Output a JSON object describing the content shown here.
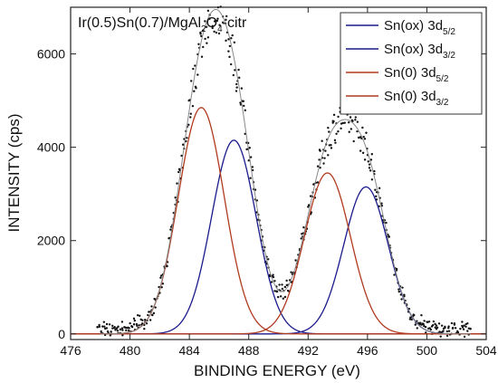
{
  "chart_data": {
    "type": "line",
    "title_parts": [
      {
        "text": "Ir(0.5)Sn(0.7)/MgAl",
        "sub": false
      },
      {
        "text": "2",
        "sub": true
      },
      {
        "text": "O",
        "sub": false
      },
      {
        "text": "4",
        "sub": true
      },
      {
        "text": "-citr",
        "sub": false
      }
    ],
    "xlabel": "BINDING ENERGY (eV)",
    "ylabel": "INTENSITY (cps)",
    "xlim": [
      476,
      504
    ],
    "ylim": [
      -120,
      7000
    ],
    "xticks": [
      476,
      480,
      484,
      488,
      492,
      496,
      500,
      504
    ],
    "yticks": [
      0,
      2000,
      4000,
      6000
    ],
    "grid": false,
    "legend_position": "top-right",
    "series": [
      {
        "name_main": "Sn(ox) 3d",
        "name_sub": "5/2",
        "color": "#1a1a8c",
        "kind": "gaussian",
        "center": 487.0,
        "amplitude": 4150,
        "sigma": 1.5
      },
      {
        "name_main": "Sn(ox) 3d",
        "name_sub": "3/2",
        "color": "#1a1a8c",
        "kind": "gaussian",
        "center": 495.9,
        "amplitude": 3150,
        "sigma": 1.5
      },
      {
        "name_main": "Sn(0) 3d",
        "name_sub": "5/2",
        "color": "#b03a1e",
        "kind": "gaussian",
        "center": 484.8,
        "amplitude": 4850,
        "sigma": 1.55
      },
      {
        "name_main": "Sn(0) 3d",
        "name_sub": "3/2",
        "color": "#b03a1e",
        "kind": "gaussian",
        "center": 493.3,
        "amplitude": 3450,
        "sigma": 1.55
      }
    ],
    "envelope": {
      "color": "#888888",
      "description": "sum of components"
    },
    "points_color": "#111111"
  }
}
